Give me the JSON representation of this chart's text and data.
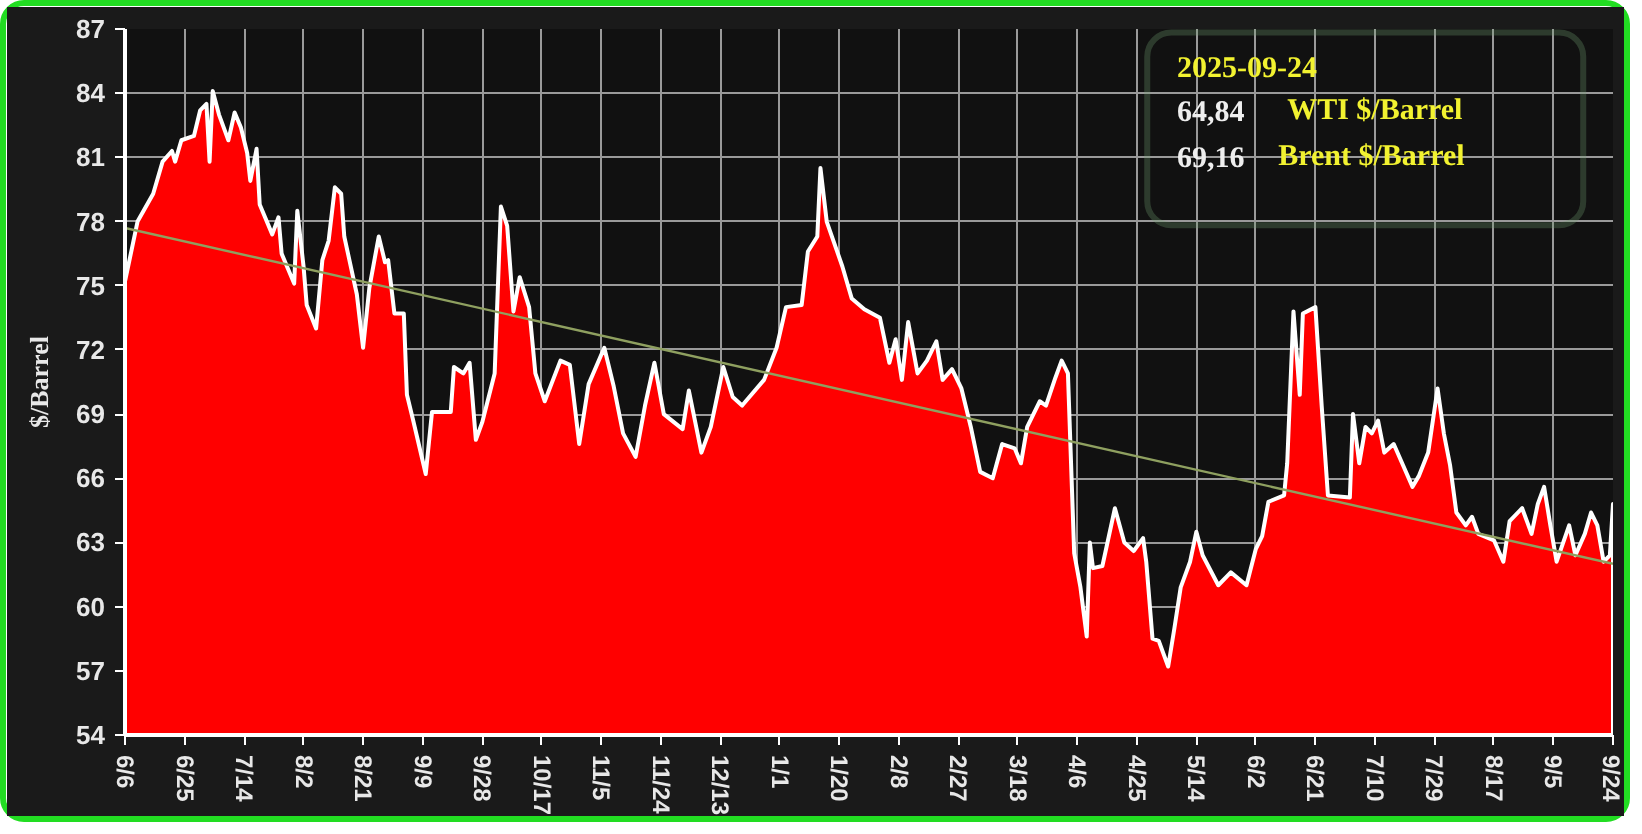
{
  "chart_data": {
    "type": "area",
    "ylabel": "$/Barrel",
    "grid": true,
    "xlim": [
      "2024-06-06",
      "2025-09-24"
    ],
    "xticks": [
      {
        "value": "2024-06-06",
        "label": "6/6"
      },
      {
        "value": "2024-06-25",
        "label": "6/25"
      },
      {
        "value": "2024-07-14",
        "label": "7/14"
      },
      {
        "value": "2024-08-02",
        "label": "8/2"
      },
      {
        "value": "2024-08-21",
        "label": "8/21"
      },
      {
        "value": "2024-09-09",
        "label": "9/9"
      },
      {
        "value": "2024-09-28",
        "label": "9/28"
      },
      {
        "value": "2024-10-17",
        "label": "10/17"
      },
      {
        "value": "2024-11-05",
        "label": "11/5"
      },
      {
        "value": "2024-11-24",
        "label": "11/24"
      },
      {
        "value": "2024-12-13",
        "label": "12/13"
      },
      {
        "value": "2025-01-01",
        "label": "1/1"
      },
      {
        "value": "2025-01-20",
        "label": "1/20"
      },
      {
        "value": "2025-02-08",
        "label": "2/8"
      },
      {
        "value": "2025-02-27",
        "label": "2/27"
      },
      {
        "value": "2025-03-18",
        "label": "3/18"
      },
      {
        "value": "2025-04-06",
        "label": "4/6"
      },
      {
        "value": "2025-04-25",
        "label": "4/25"
      },
      {
        "value": "2025-05-14",
        "label": "5/14"
      },
      {
        "value": "2025-06-02",
        "label": "6/2"
      },
      {
        "value": "2025-06-21",
        "label": "6/21"
      },
      {
        "value": "2025-07-10",
        "label": "7/10"
      },
      {
        "value": "2025-07-29",
        "label": "7/29"
      },
      {
        "value": "2025-08-17",
        "label": "8/17"
      },
      {
        "value": "2025-09-05",
        "label": "9/5"
      },
      {
        "value": "2025-09-24",
        "label": "9/24"
      }
    ],
    "ylim": [
      54,
      87
    ],
    "yticks": [
      54,
      57,
      60,
      63,
      66,
      69,
      72,
      75,
      78,
      81,
      84,
      87
    ],
    "series": [
      {
        "color": "#ff0000",
        "x": [
          "2024-06-06",
          "2024-06-10",
          "2024-06-15",
          "2024-06-18",
          "2024-06-21",
          "2024-06-22",
          "2024-06-24",
          "2024-06-28",
          "2024-06-30",
          "2024-07-02",
          "2024-07-03",
          "2024-07-04",
          "2024-07-06",
          "2024-07-09",
          "2024-07-11",
          "2024-07-13",
          "2024-07-15",
          "2024-07-16",
          "2024-07-18",
          "2024-07-19",
          "2024-07-23",
          "2024-07-25",
          "2024-07-26",
          "2024-07-30",
          "2024-07-31",
          "2024-08-02",
          "2024-08-03",
          "2024-08-06",
          "2024-08-08",
          "2024-08-10",
          "2024-08-12",
          "2024-08-14",
          "2024-08-15",
          "2024-08-19",
          "2024-08-21",
          "2024-08-23",
          "2024-08-26",
          "2024-08-28",
          "2024-08-29",
          "2024-08-31",
          "2024-09-03",
          "2024-09-04",
          "2024-09-06",
          "2024-09-10",
          "2024-09-12",
          "2024-09-18",
          "2024-09-19",
          "2024-09-22",
          "2024-09-24",
          "2024-09-26",
          "2024-09-28",
          "2024-10-02",
          "2024-10-04",
          "2024-10-06",
          "2024-10-08",
          "2024-10-10",
          "2024-10-13",
          "2024-10-15",
          "2024-10-18",
          "2024-10-23",
          "2024-10-26",
          "2024-10-29",
          "2024-11-01",
          "2024-11-06",
          "2024-11-09",
          "2024-11-12",
          "2024-11-16",
          "2024-11-19",
          "2024-11-22",
          "2024-11-25",
          "2024-12-01",
          "2024-12-03",
          "2024-12-07",
          "2024-12-10",
          "2024-12-14",
          "2024-12-17",
          "2024-12-20",
          "2024-12-27",
          "2024-12-31",
          "2025-01-03",
          "2025-01-08",
          "2025-01-10",
          "2025-01-13",
          "2025-01-14",
          "2025-01-16",
          "2025-01-21",
          "2025-01-24",
          "2025-01-28",
          "2025-02-02",
          "2025-02-05",
          "2025-02-07",
          "2025-02-09",
          "2025-02-11",
          "2025-02-14",
          "2025-02-17",
          "2025-02-20",
          "2025-02-22",
          "2025-02-25",
          "2025-02-28",
          "2025-03-03",
          "2025-03-06",
          "2025-03-10",
          "2025-03-13",
          "2025-03-17",
          "2025-03-19",
          "2025-03-21",
          "2025-03-25",
          "2025-03-27",
          "2025-03-30",
          "2025-04-01",
          "2025-04-03",
          "2025-04-05",
          "2025-04-07",
          "2025-04-09",
          "2025-04-10",
          "2025-04-11",
          "2025-04-14",
          "2025-04-18",
          "2025-04-21",
          "2025-04-24",
          "2025-04-27",
          "2025-04-28",
          "2025-04-30",
          "2025-05-02",
          "2025-05-05",
          "2025-05-07",
          "2025-05-09",
          "2025-05-12",
          "2025-05-14",
          "2025-05-16",
          "2025-05-21",
          "2025-05-25",
          "2025-05-30",
          "2025-06-02",
          "2025-06-04",
          "2025-06-06",
          "2025-06-11",
          "2025-06-12",
          "2025-06-14",
          "2025-06-16",
          "2025-06-17",
          "2025-06-21",
          "2025-06-23",
          "2025-06-25",
          "2025-07-02",
          "2025-07-03",
          "2025-07-05",
          "2025-07-07",
          "2025-07-09",
          "2025-07-11",
          "2025-07-13",
          "2025-07-16",
          "2025-07-22",
          "2025-07-24",
          "2025-07-27",
          "2025-07-30",
          "2025-08-01",
          "2025-08-03",
          "2025-08-05",
          "2025-08-08",
          "2025-08-10",
          "2025-08-12",
          "2025-08-17",
          "2025-08-20",
          "2025-08-22",
          "2025-08-26",
          "2025-08-29",
          "2025-08-31",
          "2025-09-02",
          "2025-09-04",
          "2025-09-06",
          "2025-09-10",
          "2025-09-12",
          "2025-09-15",
          "2025-09-17",
          "2025-09-19",
          "2025-09-21",
          "2025-09-23",
          "2025-09-24"
        ],
        "values": [
          75.2,
          78.0,
          79.3,
          80.8,
          81.3,
          80.8,
          81.8,
          82.0,
          83.2,
          83.5,
          80.8,
          84.1,
          83.0,
          81.8,
          83.1,
          82.4,
          81.2,
          79.9,
          81.4,
          78.8,
          77.4,
          78.2,
          76.5,
          75.1,
          78.5,
          75.9,
          74.1,
          73.0,
          76.2,
          77.1,
          79.6,
          79.3,
          77.3,
          74.6,
          72.1,
          74.9,
          77.3,
          76.1,
          76.2,
          73.7,
          73.7,
          69.9,
          68.7,
          66.2,
          69.1,
          69.1,
          71.2,
          70.9,
          71.4,
          67.8,
          68.6,
          70.9,
          78.7,
          77.8,
          73.8,
          75.4,
          74.0,
          70.9,
          69.6,
          71.5,
          71.3,
          67.6,
          70.4,
          72.1,
          70.3,
          68.1,
          67.0,
          69.4,
          71.4,
          69.0,
          68.3,
          70.1,
          67.2,
          68.4,
          71.2,
          69.8,
          69.4,
          70.6,
          72.1,
          74.0,
          74.1,
          76.6,
          77.3,
          80.5,
          78.0,
          75.9,
          74.4,
          73.9,
          73.5,
          71.4,
          72.5,
          70.6,
          73.3,
          70.9,
          71.5,
          72.4,
          70.6,
          71.1,
          70.2,
          68.4,
          66.3,
          66.0,
          67.6,
          67.4,
          66.7,
          68.4,
          69.6,
          69.4,
          70.7,
          71.5,
          70.9,
          62.5,
          60.9,
          58.6,
          63.0,
          61.8,
          61.9,
          64.6,
          63.0,
          62.6,
          63.2,
          62.1,
          58.5,
          58.4,
          57.2,
          59.0,
          60.9,
          62.1,
          63.5,
          62.4,
          61.0,
          61.6,
          61.0,
          62.7,
          63.3,
          64.9,
          65.2,
          66.7,
          73.8,
          69.9,
          73.7,
          74.0,
          69.4,
          65.2,
          65.1,
          69.0,
          66.7,
          68.4,
          68.1,
          68.7,
          67.2,
          67.6,
          65.6,
          66.1,
          67.2,
          70.2,
          68.1,
          66.6,
          64.4,
          63.8,
          64.2,
          63.4,
          63.1,
          62.1,
          64.0,
          64.6,
          63.4,
          64.8,
          65.6,
          63.8,
          62.1,
          63.8,
          62.4,
          63.4,
          64.4,
          63.8,
          62.1,
          62.4,
          64.8
        ]
      },
      {
        "type": "line",
        "color": "#8fa060",
        "x": [
          "2024-06-06",
          "2025-09-24"
        ],
        "values": [
          77.7,
          62.0
        ]
      }
    ],
    "annotations": [
      "2025-09-24",
      "64,84",
      "WTI $/Barrel",
      "69,16",
      "Brent $/Barrel"
    ]
  }
}
